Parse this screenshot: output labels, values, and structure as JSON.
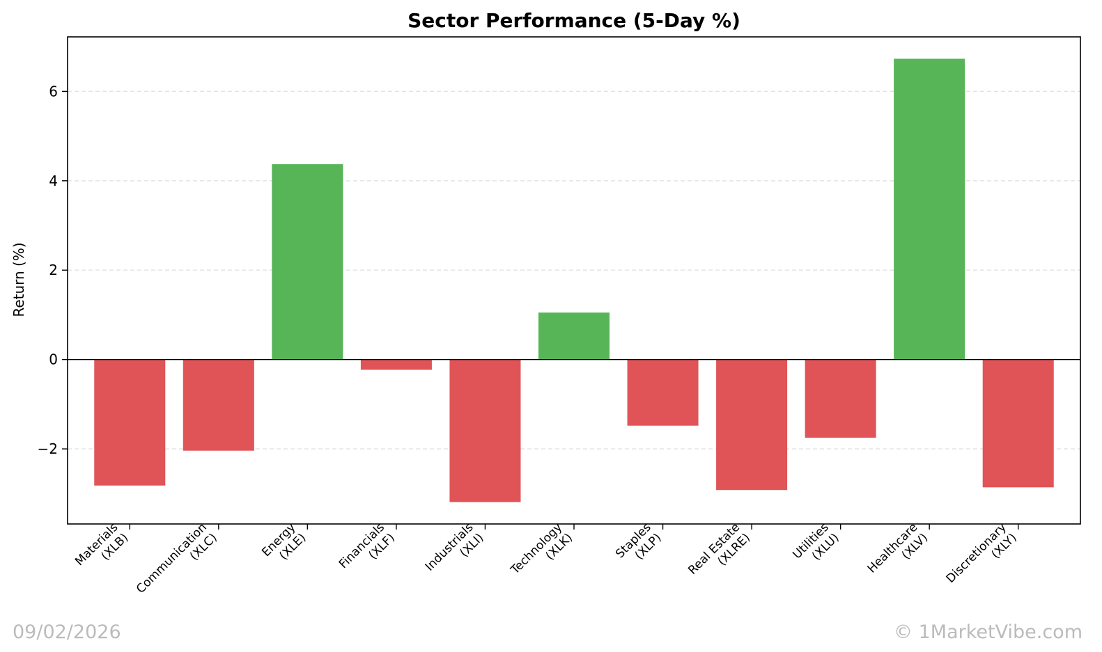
{
  "chart_data": {
    "type": "bar",
    "title": "Sector Performance (5-Day %)",
    "xlabel": "",
    "ylabel": "Return (%)",
    "categories": [
      [
        "Materials",
        "(XLB)"
      ],
      [
        "Communication",
        "(XLC)"
      ],
      [
        "Energy",
        "(XLE)"
      ],
      [
        "Financials",
        "(XLF)"
      ],
      [
        "Industrials",
        "(XLI)"
      ],
      [
        "Technology",
        "(XLK)"
      ],
      [
        "Staples",
        "(XLP)"
      ],
      [
        "Real Estate",
        "(XLRE)"
      ],
      [
        "Utilities",
        "(XLU)"
      ],
      [
        "Healthcare",
        "(XLV)"
      ],
      [
        "Discretionary",
        "(XLY)"
      ]
    ],
    "values": [
      -2.82,
      -2.04,
      4.37,
      -0.23,
      -3.19,
      1.05,
      -1.48,
      -2.92,
      -1.75,
      6.73,
      -2.86
    ],
    "ylim": [
      -3.68,
      7.22
    ],
    "yticks": [
      -2,
      0,
      2,
      4,
      6
    ],
    "ytick_labels": [
      "−2",
      "0",
      "2",
      "4",
      "6"
    ],
    "grid": "y-dashed",
    "colors": {
      "positive": "#57b457",
      "negative": "#e05457",
      "zero_line": "#000000",
      "grid": "#e2e2e2"
    }
  },
  "footer": {
    "date": "09/02/2026",
    "copyright": "© 1MarketVibe.com"
  }
}
